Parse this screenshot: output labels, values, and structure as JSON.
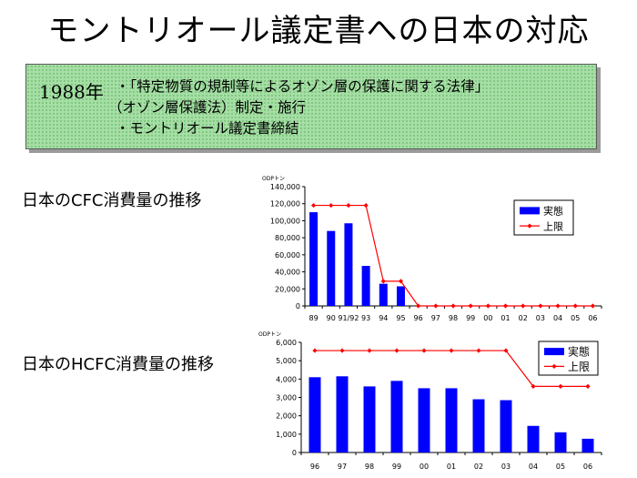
{
  "page": {
    "title": "モントリオール議定書への日本の対応",
    "info": {
      "year": "1988年",
      "lines": [
        "・「特定物質の規制等によるオゾン層の保護に関する法律」",
        "（オゾン層保護法）制定・施行",
        "・モントリオール議定書締結"
      ]
    }
  },
  "chart_data": [
    {
      "type": "bar",
      "heading": "日本のCFC消費量の推移",
      "unit_label": "ODPトン",
      "categories": [
        "89",
        "90",
        "91/92",
        "93",
        "94",
        "95",
        "96",
        "97",
        "98",
        "99",
        "00",
        "01",
        "02",
        "03",
        "04",
        "05",
        "06"
      ],
      "ylim": [
        0,
        140000
      ],
      "yticks": [
        "0",
        "20,000",
        "40,000",
        "60,000",
        "80,000",
        "100,000",
        "120,000",
        "140,000"
      ],
      "grid": false,
      "legend_position": "top-right",
      "series": [
        {
          "name": "実態",
          "type": "bar",
          "color": "#0000ff",
          "values": [
            110000,
            88000,
            97000,
            47000,
            26000,
            23000,
            null,
            null,
            null,
            null,
            null,
            null,
            null,
            null,
            null,
            null,
            null
          ]
        },
        {
          "name": "上限",
          "type": "line",
          "color": "#ff0000",
          "values": [
            118000,
            118000,
            118000,
            118000,
            29000,
            29000,
            0,
            0,
            0,
            0,
            0,
            0,
            0,
            0,
            0,
            0,
            0
          ]
        }
      ]
    },
    {
      "type": "bar",
      "heading": "日本のHCFC消費量の推移",
      "unit_label": "ODPトン",
      "categories": [
        "96",
        "97",
        "98",
        "99",
        "00",
        "01",
        "02",
        "03",
        "04",
        "05",
        "06"
      ],
      "ylim": [
        0,
        6000
      ],
      "yticks": [
        "0",
        "1,000",
        "2,000",
        "3,000",
        "4,000",
        "5,000",
        "6,000"
      ],
      "grid": false,
      "legend_position": "top-right",
      "series": [
        {
          "name": "実態",
          "type": "bar",
          "color": "#0000ff",
          "values": [
            4100,
            4150,
            3600,
            3900,
            3500,
            3500,
            2900,
            2850,
            1450,
            1100,
            750
          ]
        },
        {
          "name": "上限",
          "type": "line",
          "color": "#ff0000",
          "values": [
            5550,
            5550,
            5550,
            5550,
            5550,
            5550,
            5550,
            5550,
            3600,
            3600,
            3600
          ]
        }
      ]
    }
  ]
}
